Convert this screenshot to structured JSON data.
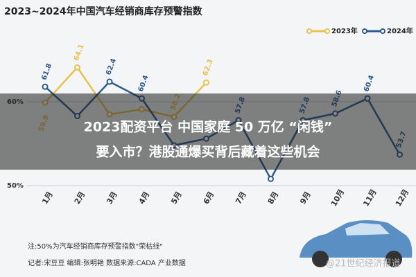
{
  "chart_data": {
    "type": "line",
    "title": "2023~2024年中国汽车经销商库存预警指数",
    "categories": [
      "1月",
      "2月",
      "3月",
      "4月",
      "5月",
      "6月",
      "7月",
      "8月",
      "9月",
      "10月",
      "11月",
      "12月"
    ],
    "series": [
      {
        "name": "2023年",
        "color": "#e8c24a",
        "values": [
          59.9,
          64.1,
          58.5,
          59.1,
          58.2,
          62.3,
          null,
          null,
          null,
          null,
          null,
          null
        ],
        "value_labels": [
          "59.9",
          "64.1",
          null,
          null,
          "58.2",
          "62.3",
          null,
          null,
          null,
          null,
          null,
          null
        ]
      },
      {
        "name": "2024年",
        "color": "#2b5b8c",
        "values": [
          61.8,
          58.3,
          62.4,
          60.4,
          54.8,
          55.6,
          57.8,
          50.8,
          57.8,
          58.6,
          60.4,
          53.7
        ],
        "value_labels": [
          "61.8",
          null,
          "62.4",
          "60.4",
          null,
          null,
          "57.8",
          null,
          "57.8",
          "58.6",
          "60.4",
          "53.7"
        ]
      }
    ],
    "ylim": [
      50,
      68.8
    ],
    "yticks": [
      {
        "value": 50,
        "label": "50%"
      },
      {
        "value": 60,
        "label": "60%"
      }
    ],
    "grid": true,
    "legend": "top-right"
  },
  "overlay": {
    "line1": "2023配资平台 中国家庭 50 万亿 “闲钱”",
    "line2": "要入市？港股通爆买背后藏着这些机会"
  },
  "footer": {
    "note": "注:50%为汽车经销商库存预警指数\"荣枯线\"",
    "credits": "记者:宋豆豆  编辑:张明艳  数据来源:CADA 产业数据"
  },
  "watermark": "@21世纪经济报道"
}
